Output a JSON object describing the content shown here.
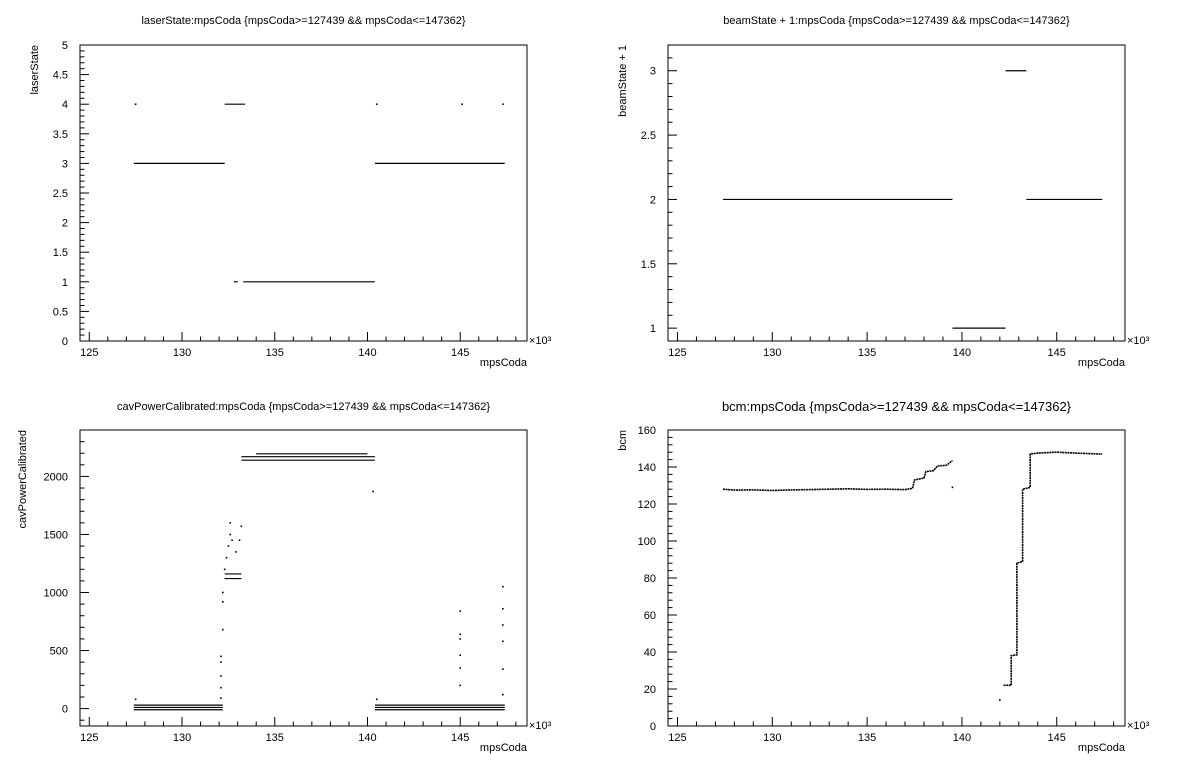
{
  "chart_data": [
    {
      "type": "scatter",
      "title": "laserState:mpsCoda {mpsCoda>=127439 && mpsCoda<=147362}",
      "xlabel": "mpsCoda",
      "ylabel": "laserState",
      "x_multiplier": "×10³",
      "xlim": [
        124.5,
        148.6
      ],
      "ylim": [
        0,
        5
      ],
      "xticks": [
        125,
        130,
        135,
        140,
        145
      ],
      "xtick_labels": [
        "125",
        "130",
        "135",
        "140",
        "145"
      ],
      "yticks": [
        0,
        0.5,
        1,
        1.5,
        2,
        2.5,
        3,
        3.5,
        4,
        4.5,
        5
      ],
      "ytick_labels": [
        "0",
        "0.5",
        "1",
        "1.5",
        "2",
        "2.5",
        "3",
        "3.5",
        "4",
        "4.5",
        "5"
      ],
      "segments": [
        {
          "x": [
            127.4,
            132.3
          ],
          "y": 3
        },
        {
          "x": [
            132.3,
            133.4
          ],
          "y": 4
        },
        {
          "x": [
            132.8,
            133.0
          ],
          "y": 1
        },
        {
          "x": [
            133.3,
            140.4
          ],
          "y": 1
        },
        {
          "x": [
            140.4,
            147.4
          ],
          "y": 3
        }
      ],
      "points": [
        {
          "x": 127.5,
          "y": 4
        },
        {
          "x": 140.5,
          "y": 4
        },
        {
          "x": 145.1,
          "y": 4
        },
        {
          "x": 147.3,
          "y": 4
        }
      ]
    },
    {
      "type": "scatter",
      "title": "beamState + 1:mpsCoda {mpsCoda>=127439 && mpsCoda<=147362}",
      "xlabel": "mpsCoda",
      "ylabel": "beamState + 1",
      "x_multiplier": "×10³",
      "xlim": [
        124.5,
        148.6
      ],
      "ylim": [
        0.9,
        3.2
      ],
      "xticks": [
        125,
        130,
        135,
        140,
        145
      ],
      "xtick_labels": [
        "125",
        "130",
        "135",
        "140",
        "145"
      ],
      "yticks": [
        1,
        1.5,
        2,
        2.5,
        3
      ],
      "ytick_labels": [
        "1",
        "1.5",
        "2",
        "2.5",
        "3"
      ],
      "segments": [
        {
          "x": [
            127.4,
            139.5
          ],
          "y": 2
        },
        {
          "x": [
            139.5,
            142.3
          ],
          "y": 1
        },
        {
          "x": [
            142.3,
            143.4
          ],
          "y": 3
        },
        {
          "x": [
            143.4,
            147.4
          ],
          "y": 2
        }
      ],
      "points": []
    },
    {
      "type": "scatter",
      "title": "cavPowerCalibrated:mpsCoda {mpsCoda>=127439 && mpsCoda<=147362}",
      "xlabel": "mpsCoda",
      "ylabel": "cavPowerCalibrated",
      "x_multiplier": "×10³",
      "xlim": [
        124.5,
        148.6
      ],
      "ylim": [
        -150,
        2400
      ],
      "xticks": [
        125,
        130,
        135,
        140,
        145
      ],
      "xtick_labels": [
        "125",
        "130",
        "135",
        "140",
        "145"
      ],
      "yticks": [
        0,
        500,
        1000,
        1500,
        2000
      ],
      "ytick_labels": [
        "0",
        "500",
        "1000",
        "1500",
        "2000"
      ],
      "segments": [
        {
          "x": [
            127.4,
            132.2
          ],
          "y": -10
        },
        {
          "x": [
            127.4,
            132.2
          ],
          "y": 10
        },
        {
          "x": [
            127.4,
            132.2
          ],
          "y": 30
        },
        {
          "x": [
            132.3,
            133.2
          ],
          "y": 1120
        },
        {
          "x": [
            132.3,
            133.2
          ],
          "y": 1160
        },
        {
          "x": [
            133.2,
            140.4
          ],
          "y": 2140
        },
        {
          "x": [
            133.2,
            140.4
          ],
          "y": 2170
        },
        {
          "x": [
            134.0,
            140.0
          ],
          "y": 2195
        },
        {
          "x": [
            140.4,
            147.4
          ],
          "y": -10
        },
        {
          "x": [
            140.4,
            147.4
          ],
          "y": 10
        },
        {
          "x": [
            140.4,
            147.4
          ],
          "y": 30
        }
      ],
      "points": [
        {
          "x": 132.1,
          "y": 90
        },
        {
          "x": 132.1,
          "y": 180
        },
        {
          "x": 132.1,
          "y": 280
        },
        {
          "x": 132.1,
          "y": 400
        },
        {
          "x": 132.1,
          "y": 450
        },
        {
          "x": 132.2,
          "y": 680
        },
        {
          "x": 132.2,
          "y": 920
        },
        {
          "x": 132.2,
          "y": 1000
        },
        {
          "x": 132.3,
          "y": 1200
        },
        {
          "x": 132.4,
          "y": 1300
        },
        {
          "x": 132.5,
          "y": 1400
        },
        {
          "x": 132.6,
          "y": 1500
        },
        {
          "x": 132.6,
          "y": 1600
        },
        {
          "x": 132.7,
          "y": 1450
        },
        {
          "x": 132.9,
          "y": 1350
        },
        {
          "x": 133.1,
          "y": 1450
        },
        {
          "x": 133.2,
          "y": 1570
        },
        {
          "x": 140.3,
          "y": 1870
        },
        {
          "x": 127.5,
          "y": 80
        },
        {
          "x": 140.5,
          "y": 80
        },
        {
          "x": 145.0,
          "y": 200
        },
        {
          "x": 145.0,
          "y": 350
        },
        {
          "x": 145.0,
          "y": 460
        },
        {
          "x": 145.0,
          "y": 600
        },
        {
          "x": 145.0,
          "y": 640
        },
        {
          "x": 145.0,
          "y": 840
        },
        {
          "x": 147.3,
          "y": 120
        },
        {
          "x": 147.3,
          "y": 340
        },
        {
          "x": 147.3,
          "y": 580
        },
        {
          "x": 147.3,
          "y": 720
        },
        {
          "x": 147.3,
          "y": 860
        },
        {
          "x": 147.3,
          "y": 1050
        }
      ]
    },
    {
      "type": "scatter",
      "title": "bcm:mpsCoda {mpsCoda>=127439 && mpsCoda<=147362}",
      "xlabel": "mpsCoda",
      "ylabel": "bcm",
      "x_multiplier": "×10³",
      "xlim": [
        124.5,
        148.6
      ],
      "ylim": [
        0,
        160
      ],
      "xticks": [
        125,
        130,
        135,
        140,
        145
      ],
      "xtick_labels": [
        "125",
        "130",
        "135",
        "140",
        "145"
      ],
      "yticks": [
        0,
        20,
        40,
        60,
        80,
        100,
        120,
        140,
        160
      ],
      "ytick_labels": [
        "0",
        "20",
        "40",
        "60",
        "80",
        "100",
        "120",
        "140",
        "160"
      ],
      "line_series": [
        [
          [
            127.4,
            128.0
          ],
          [
            128.0,
            127.5
          ],
          [
            129.0,
            127.6
          ],
          [
            130.0,
            127.3
          ],
          [
            131.0,
            127.6
          ],
          [
            132.0,
            127.8
          ],
          [
            133.0,
            128.0
          ],
          [
            134.0,
            128.2
          ],
          [
            135.0,
            127.9
          ],
          [
            136.0,
            128.0
          ],
          [
            137.0,
            127.8
          ],
          [
            137.4,
            128.5
          ],
          [
            137.5,
            133.0
          ],
          [
            138.0,
            134.0
          ],
          [
            138.1,
            137.5
          ],
          [
            138.5,
            138.0
          ],
          [
            138.7,
            140.5
          ],
          [
            139.2,
            141.0
          ],
          [
            139.5,
            143.5
          ]
        ],
        [
          [
            142.2,
            22.0
          ],
          [
            142.6,
            22.0
          ],
          [
            142.6,
            38.0
          ],
          [
            142.9,
            38.5
          ],
          [
            142.9,
            88.0
          ],
          [
            143.2,
            89.0
          ],
          [
            143.2,
            128.0
          ],
          [
            143.6,
            129.0
          ],
          [
            143.6,
            147.0
          ],
          [
            144.0,
            147.5
          ],
          [
            145.0,
            148.0
          ],
          [
            146.0,
            147.5
          ],
          [
            147.4,
            147.0
          ]
        ]
      ],
      "points": [
        {
          "x": 139.5,
          "y": 129.0
        },
        {
          "x": 142.0,
          "y": 14.0
        }
      ]
    }
  ]
}
